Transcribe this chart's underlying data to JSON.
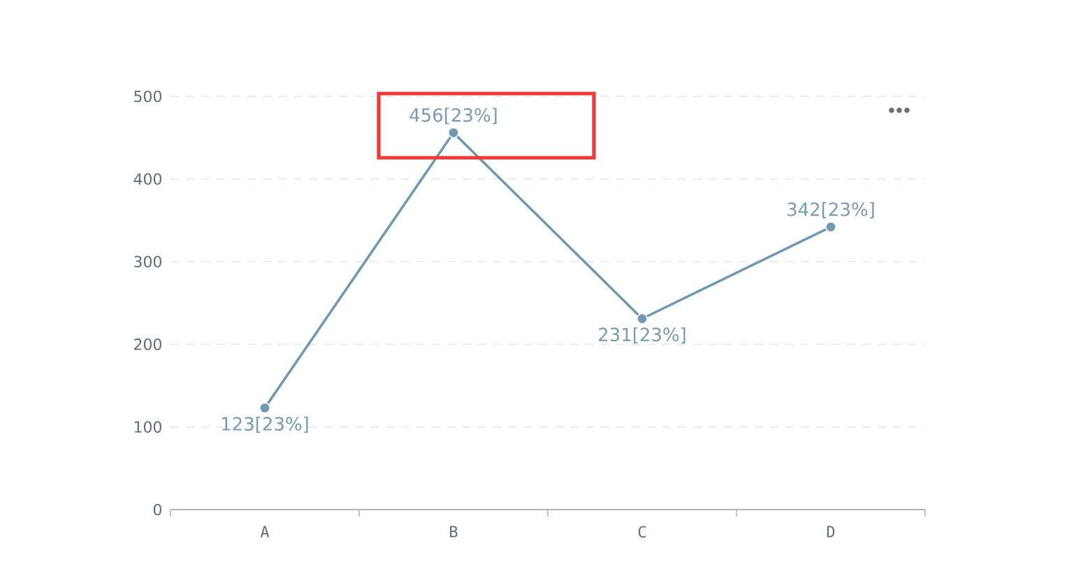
{
  "chart_data": {
    "type": "line",
    "categories": [
      "A",
      "B",
      "C",
      "D"
    ],
    "values": [
      123,
      456,
      231,
      342
    ],
    "value_labels": [
      "123[23%]",
      "456[23%]",
      "231[23%]",
      "342[23%]"
    ],
    "color": "#7399b0",
    "ylim": [
      0,
      500
    ],
    "yticks": [
      0,
      100,
      200,
      300,
      400,
      500
    ],
    "grid": "y",
    "marker": "circle",
    "line_style": "solid"
  }
}
